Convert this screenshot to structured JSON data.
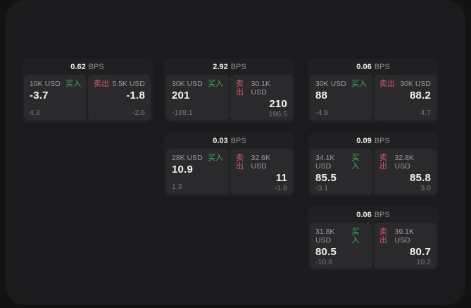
{
  "unit_label": "BPS",
  "colors": {
    "buy_green": "#3dae5b",
    "sell_red": "#d9586f",
    "window_bg": "#1b1b1d",
    "card_bg": "#202023",
    "panel_bg": "#2a2a2d"
  },
  "cards": [
    {
      "header": {
        "value": "0.62",
        "unit": "BPS"
      },
      "buy": {
        "amount": "10K USD",
        "side_label": "买入",
        "price": "-3.7",
        "delta": "4.3"
      },
      "sell": {
        "side_label": "卖出",
        "amount": "5.5K USD",
        "price": "-1.8",
        "delta": "-2.6"
      }
    },
    {
      "header": {
        "value": "2.92",
        "unit": "BPS"
      },
      "buy": {
        "amount": "30K USD",
        "side_label": "买入",
        "price": "201",
        "delta": "-188.1"
      },
      "sell": {
        "side_label": "卖出",
        "amount": "30.1K USD",
        "price": "210",
        "delta": "196.5"
      }
    },
    {
      "header": {
        "value": "0.06",
        "unit": "BPS"
      },
      "buy": {
        "amount": "30K USD",
        "side_label": "买入",
        "price": "88",
        "delta": "-4.9"
      },
      "sell": {
        "side_label": "卖出",
        "amount": "30K USD",
        "price": "88.2",
        "delta": "4.7"
      }
    },
    {
      "header": {
        "value": "0.03",
        "unit": "BPS"
      },
      "buy": {
        "amount": "28K USD",
        "side_label": "买入",
        "price": "10.9",
        "delta": "1.3"
      },
      "sell": {
        "side_label": "卖出",
        "amount": "32.6K USD",
        "price": "11",
        "delta": "-1.8"
      }
    },
    {
      "header": {
        "value": "0.09",
        "unit": "BPS"
      },
      "buy": {
        "amount": "34.1K USD",
        "side_label": "买入",
        "price": "85.5",
        "delta": "-3.1"
      },
      "sell": {
        "side_label": "卖出",
        "amount": "32.8K USD",
        "price": "85.8",
        "delta": "3.0"
      }
    },
    {
      "header": {
        "value": "0.06",
        "unit": "BPS"
      },
      "buy": {
        "amount": "31.8K USD",
        "side_label": "买入",
        "price": "80.5",
        "delta": "-10.8"
      },
      "sell": {
        "side_label": "卖出",
        "amount": "39.1K USD",
        "price": "80.7",
        "delta": "10.2"
      }
    }
  ]
}
